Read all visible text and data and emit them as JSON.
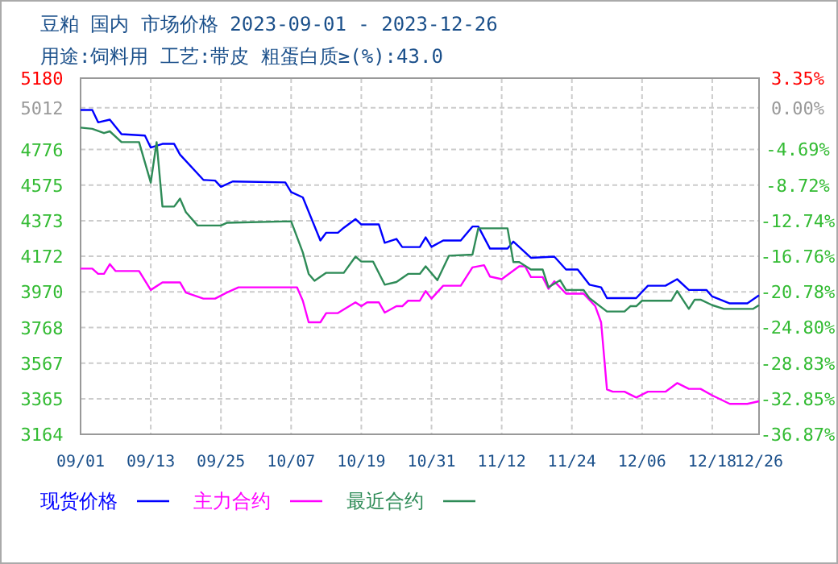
{
  "chart_data": {
    "type": "line",
    "title": "豆粕 国内 市场价格 2023-09-01 - 2023-12-26",
    "subtitle": "用途:饲料用 工艺:带皮 粗蛋白质≥(%):43.0",
    "xlim": [
      "2023-09-01",
      "2023-12-26"
    ],
    "xticks": [
      {
        "value": "2023-09-01",
        "label": "09/01"
      },
      {
        "value": "2023-09-13",
        "label": "09/13"
      },
      {
        "value": "2023-09-25",
        "label": "09/25"
      },
      {
        "value": "2023-10-07",
        "label": "10/07"
      },
      {
        "value": "2023-10-19",
        "label": "10/19"
      },
      {
        "value": "2023-10-31",
        "label": "10/31"
      },
      {
        "value": "2023-11-12",
        "label": "11/12"
      },
      {
        "value": "2023-11-24",
        "label": "11/24"
      },
      {
        "value": "2023-12-06",
        "label": "12/06"
      },
      {
        "value": "2023-12-18",
        "label": "12/18"
      },
      {
        "value": "2023-12-26",
        "label": "12/26"
      }
    ],
    "ylim": [
      3164,
      5180
    ],
    "yticks": [
      3164,
      3365,
      3567,
      3768,
      3970,
      4172,
      4373,
      4575,
      4776,
      5012,
      5180
    ],
    "y2lim": [
      -36.87,
      3.35
    ],
    "y2ticks": [
      {
        "value": -36.87,
        "label": "-36.87%"
      },
      {
        "value": -32.85,
        "label": "-32.85%"
      },
      {
        "value": -28.83,
        "label": "-28.83%"
      },
      {
        "value": -24.8,
        "label": "-24.80%"
      },
      {
        "value": -20.78,
        "label": "-20.78%"
      },
      {
        "value": -16.76,
        "label": "-16.76%"
      },
      {
        "value": -12.74,
        "label": "-12.74%"
      },
      {
        "value": -8.72,
        "label": "-8.72%"
      },
      {
        "value": -4.69,
        "label": "-4.69%"
      },
      {
        "value": 0,
        "label": "0.00%"
      },
      {
        "value": 3.35,
        "label": "3.35%"
      }
    ],
    "grid": true,
    "legend": "bottom",
    "marker": "none",
    "line_style": "solid",
    "series": [
      {
        "name": "现货价格",
        "color": "#0000ff",
        "x": [
          "2023-09-01",
          "2023-09-03",
          "2023-09-04",
          "2023-09-06",
          "2023-09-08",
          "2023-09-12",
          "2023-09-13",
          "2023-09-15",
          "2023-09-17",
          "2023-09-18",
          "2023-09-22",
          "2023-09-24",
          "2023-09-25",
          "2023-09-27",
          "2023-10-06",
          "2023-10-07",
          "2023-10-09",
          "2023-10-12",
          "2023-10-13",
          "2023-10-15",
          "2023-10-16",
          "2023-10-18",
          "2023-10-19",
          "2023-10-22",
          "2023-10-23",
          "2023-10-25",
          "2023-10-26",
          "2023-10-29",
          "2023-10-30",
          "2023-10-31",
          "2023-11-02",
          "2023-11-05",
          "2023-11-07",
          "2023-11-08",
          "2023-11-10",
          "2023-11-13",
          "2023-11-14",
          "2023-11-17",
          "2023-11-21",
          "2023-11-23",
          "2023-11-25",
          "2023-11-27",
          "2023-11-29",
          "2023-11-30",
          "2023-12-05",
          "2023-12-07",
          "2023-12-10",
          "2023-12-12",
          "2023-12-14",
          "2023-12-17",
          "2023-12-18",
          "2023-12-21",
          "2023-12-24",
          "2023-12-26"
        ],
        "values": [
          5000,
          5000,
          4930,
          4945,
          4863,
          4855,
          4787,
          4808,
          4808,
          4747,
          4604,
          4600,
          4565,
          4595,
          4590,
          4535,
          4505,
          4261,
          4305,
          4305,
          4333,
          4382,
          4352,
          4352,
          4248,
          4270,
          4224,
          4224,
          4279,
          4225,
          4261,
          4261,
          4340,
          4340,
          4215,
          4215,
          4255,
          4163,
          4170,
          4097,
          4097,
          4011,
          3996,
          3935,
          3935,
          4005,
          4005,
          4042,
          3981,
          3981,
          3944,
          3905,
          3905,
          3951
        ]
      },
      {
        "name": "主力合约",
        "color": "#ff00ff",
        "x": [
          "2023-09-01",
          "2023-09-03",
          "2023-09-04",
          "2023-09-05",
          "2023-09-06",
          "2023-09-07",
          "2023-09-11",
          "2023-09-13",
          "2023-09-15",
          "2023-09-18",
          "2023-09-19",
          "2023-09-22",
          "2023-09-24",
          "2023-09-26",
          "2023-09-28",
          "2023-10-08",
          "2023-10-09",
          "2023-10-10",
          "2023-10-12",
          "2023-10-13",
          "2023-10-15",
          "2023-10-18",
          "2023-10-19",
          "2023-10-20",
          "2023-10-22",
          "2023-10-23",
          "2023-10-25",
          "2023-10-26",
          "2023-10-27",
          "2023-10-29",
          "2023-10-30",
          "2023-10-31",
          "2023-11-02",
          "2023-11-05",
          "2023-11-07",
          "2023-11-09",
          "2023-11-10",
          "2023-11-12",
          "2023-11-15",
          "2023-11-16",
          "2023-11-17",
          "2023-11-19",
          "2023-11-20",
          "2023-11-21",
          "2023-11-23",
          "2023-11-26",
          "2023-11-28",
          "2023-11-29",
          "2023-11-30",
          "2023-12-01",
          "2023-12-03",
          "2023-12-05",
          "2023-12-07",
          "2023-12-10",
          "2023-12-12",
          "2023-12-14",
          "2023-12-16",
          "2023-12-18",
          "2023-12-21",
          "2023-12-24",
          "2023-12-26"
        ],
        "values": [
          4102,
          4102,
          4072,
          4072,
          4127,
          4088,
          4088,
          3981,
          4024,
          4024,
          3966,
          3932,
          3932,
          3966,
          3996,
          3996,
          3920,
          3798,
          3798,
          3850,
          3850,
          3911,
          3889,
          3911,
          3911,
          3853,
          3889,
          3889,
          3920,
          3920,
          3975,
          3932,
          4005,
          4005,
          4109,
          4121,
          4057,
          4042,
          4115,
          4115,
          4054,
          4054,
          3987,
          4030,
          3960,
          3960,
          3889,
          3798,
          3418,
          3405,
          3405,
          3372,
          3405,
          3405,
          3454,
          3421,
          3421,
          3384,
          3336,
          3336,
          3351
        ]
      },
      {
        "name": "最近合约",
        "color": "#2e8b57",
        "x": [
          "2023-09-01",
          "2023-09-03",
          "2023-09-05",
          "2023-09-06",
          "2023-09-08",
          "2023-09-11",
          "2023-09-13",
          "2023-09-14",
          "2023-09-15",
          "2023-09-17",
          "2023-09-18",
          "2023-09-19",
          "2023-09-21",
          "2023-09-25",
          "2023-09-26",
          "2023-10-07",
          "2023-10-09",
          "2023-10-10",
          "2023-10-11",
          "2023-10-13",
          "2023-10-16",
          "2023-10-18",
          "2023-10-19",
          "2023-10-21",
          "2023-10-23",
          "2023-10-25",
          "2023-10-27",
          "2023-10-29",
          "2023-10-30",
          "2023-11-01",
          "2023-11-03",
          "2023-11-07",
          "2023-11-08",
          "2023-11-13",
          "2023-11-14",
          "2023-11-15",
          "2023-11-17",
          "2023-11-19",
          "2023-11-20",
          "2023-11-22",
          "2023-11-23",
          "2023-11-26",
          "2023-11-27",
          "2023-11-30",
          "2023-12-03",
          "2023-12-04",
          "2023-12-05",
          "2023-12-06",
          "2023-12-11",
          "2023-12-12",
          "2023-12-14",
          "2023-12-15",
          "2023-12-16",
          "2023-12-18",
          "2023-12-20",
          "2023-12-25",
          "2023-12-26"
        ],
        "values": [
          4900,
          4893,
          4869,
          4879,
          4818,
          4818,
          4589,
          4818,
          4453,
          4453,
          4498,
          4422,
          4346,
          4346,
          4361,
          4370,
          4193,
          4072,
          4033,
          4078,
          4078,
          4170,
          4142,
          4142,
          4011,
          4026,
          4072,
          4072,
          4115,
          4036,
          4175,
          4181,
          4330,
          4330,
          4139,
          4139,
          4097,
          4097,
          3996,
          4036,
          3981,
          3981,
          3935,
          3859,
          3859,
          3889,
          3889,
          3920,
          3920,
          3975,
          3874,
          3926,
          3926,
          3895,
          3874,
          3874,
          3895
        ]
      }
    ]
  }
}
